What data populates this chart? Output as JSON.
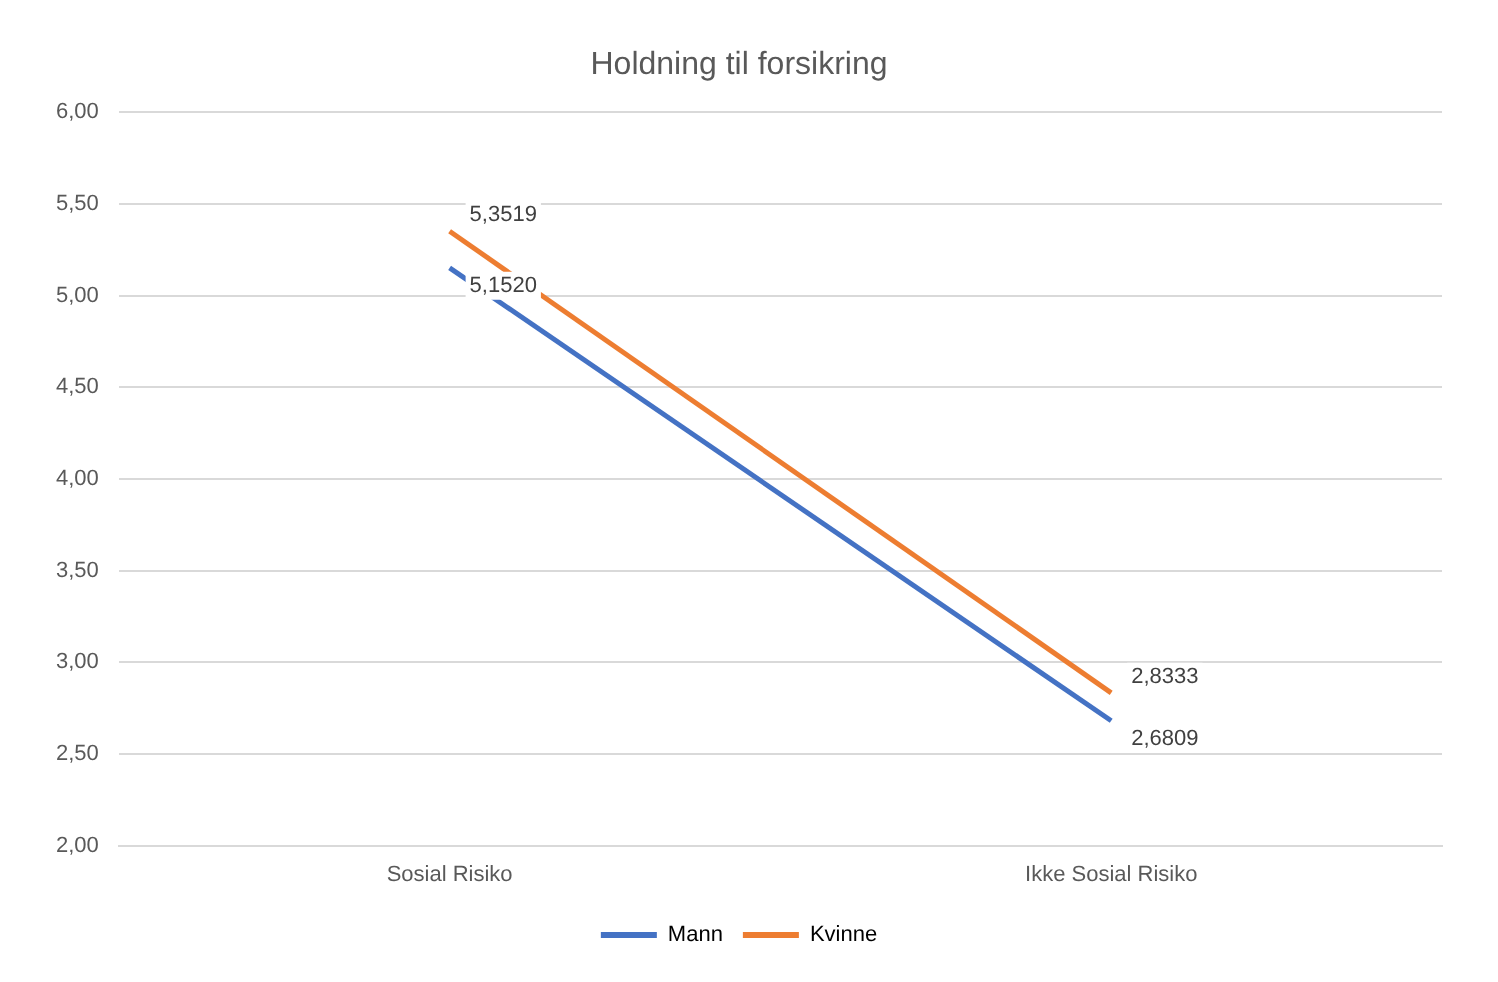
{
  "chart_data": {
    "type": "line",
    "title": "Holdning til forsikring",
    "categories": [
      "Sosial Risiko",
      "Ikke Sosial Risiko"
    ],
    "series": [
      {
        "name": "Mann",
        "color": "#4472c4",
        "values": [
          5.152,
          2.6809
        ],
        "value_labels": [
          "5,1520",
          "2,6809"
        ]
      },
      {
        "name": "Kvinne",
        "color": "#ed7d31",
        "values": [
          5.3519,
          2.8333
        ],
        "value_labels": [
          "5,3519",
          "2,8333"
        ]
      }
    ],
    "ylim": [
      2,
      6
    ],
    "yticks": [
      {
        "value": 2,
        "label": "2,00"
      },
      {
        "value": 2.5,
        "label": "2,50"
      },
      {
        "value": 3,
        "label": "3,00"
      },
      {
        "value": 3.5,
        "label": "3,50"
      },
      {
        "value": 4,
        "label": "4,00"
      },
      {
        "value": 4.5,
        "label": "4,50"
      },
      {
        "value": 5,
        "label": "5,00"
      },
      {
        "value": 5.5,
        "label": "5,50"
      },
      {
        "value": 6,
        "label": "6,00"
      }
    ],
    "grid": "y",
    "legend": "bottom",
    "marker": "none",
    "line_style": "solid"
  }
}
